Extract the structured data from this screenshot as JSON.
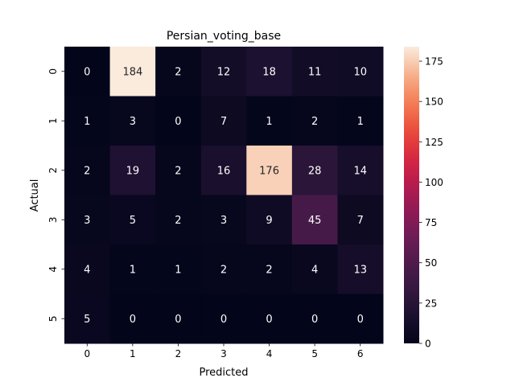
{
  "chart_data": {
    "type": "heatmap",
    "title": "Persian_voting_base",
    "xlabel": "Predicted",
    "ylabel": "Actual",
    "x_categories": [
      "0",
      "1",
      "2",
      "3",
      "4",
      "5",
      "6"
    ],
    "y_categories": [
      "0",
      "1",
      "2",
      "3",
      "4",
      "5"
    ],
    "values": [
      [
        0,
        184,
        2,
        12,
        18,
        11,
        10
      ],
      [
        1,
        3,
        0,
        7,
        1,
        2,
        1
      ],
      [
        2,
        19,
        2,
        16,
        176,
        28,
        14
      ],
      [
        3,
        5,
        2,
        3,
        9,
        45,
        7
      ],
      [
        4,
        1,
        1,
        2,
        2,
        4,
        13
      ],
      [
        5,
        0,
        0,
        0,
        0,
        0,
        0
      ]
    ],
    "colorbar": {
      "colormap": "rocket",
      "range": [
        0,
        184
      ],
      "ticks": [
        0,
        25,
        50,
        75,
        100,
        125,
        150,
        175
      ]
    },
    "legend": "right",
    "grid": false
  }
}
